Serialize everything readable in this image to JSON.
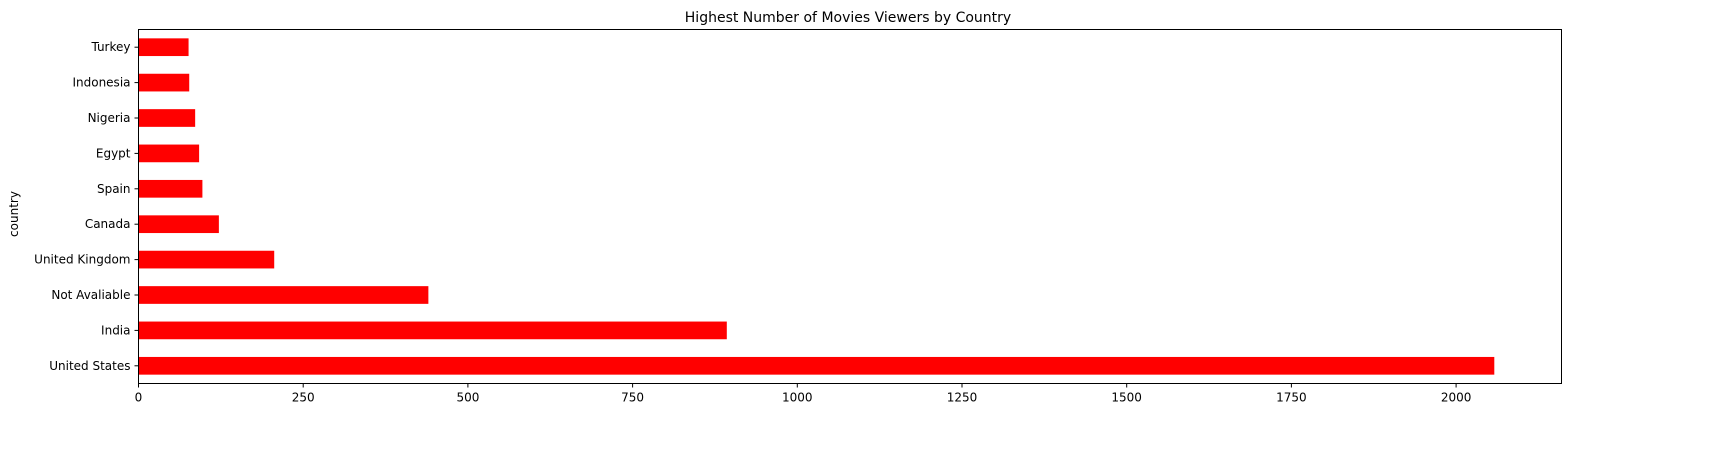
{
  "chart_data": {
    "type": "bar",
    "orientation": "horizontal",
    "title": "Highest Number of Movies Viewers by Country",
    "xlabel": "",
    "ylabel": "country",
    "categories": [
      "United States",
      "India",
      "Not Avaliable",
      "United Kingdom",
      "Canada",
      "Spain",
      "Egypt",
      "Nigeria",
      "Indonesia",
      "Turkey"
    ],
    "values": [
      2058,
      893,
      440,
      206,
      122,
      97,
      92,
      86,
      77,
      76
    ],
    "xlim": [
      0,
      2160
    ],
    "xticks": [
      0,
      250,
      500,
      750,
      1000,
      1250,
      1500,
      1750,
      2000
    ],
    "grid": false,
    "bar_color": "#ff0000"
  }
}
